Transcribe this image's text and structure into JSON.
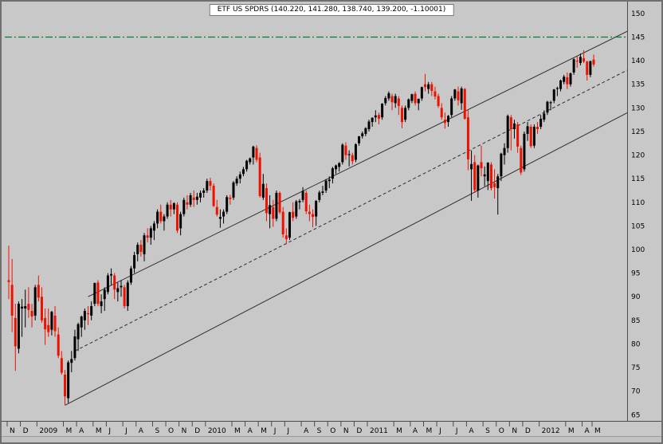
{
  "title": "ETF US SPDRS (140.220, 141.280, 138.740, 139.200, -1.10001)",
  "chart_data": {
    "type": "candlestick",
    "symbol": "ETF US SPDRS",
    "period": "weekly",
    "last_quote": {
      "open": 140.22,
      "high": 141.28,
      "low": 138.74,
      "close": 139.2,
      "change": -1.10001
    },
    "colors": {
      "background": "#c8c8c8",
      "frame": "#6f6f6f",
      "up": "#000000",
      "down": "#ee1100",
      "trendline": "#2e2e2e",
      "horizontal": "#0b7a3a",
      "axis_text": "#000000"
    },
    "y_axis": {
      "labels": [
        150,
        145,
        140,
        135,
        130,
        125,
        120,
        115,
        110,
        105,
        100,
        95,
        90,
        85,
        80,
        75,
        70,
        65
      ],
      "ylim": [
        63.7,
        151.5
      ]
    },
    "x_ticks": [
      {
        "label": "N",
        "bar": 0
      },
      {
        "label": "D",
        "bar": 4
      },
      {
        "label": "2009",
        "bar": 9
      },
      {
        "label": "M",
        "bar": 17
      },
      {
        "label": "A",
        "bar": 21
      },
      {
        "label": "M",
        "bar": 26
      },
      {
        "label": "J",
        "bar": 30
      },
      {
        "label": "J",
        "bar": 35
      },
      {
        "label": "A",
        "bar": 39
      },
      {
        "label": "S",
        "bar": 44
      },
      {
        "label": "O",
        "bar": 48
      },
      {
        "label": "N",
        "bar": 52
      },
      {
        "label": "D",
        "bar": 56
      },
      {
        "label": "2010",
        "bar": 60
      },
      {
        "label": "M",
        "bar": 68
      },
      {
        "label": "A",
        "bar": 72
      },
      {
        "label": "M",
        "bar": 76
      },
      {
        "label": "J",
        "bar": 80
      },
      {
        "label": "J",
        "bar": 84
      },
      {
        "label": "A",
        "bar": 89
      },
      {
        "label": "S",
        "bar": 93
      },
      {
        "label": "O",
        "bar": 97
      },
      {
        "label": "N",
        "bar": 101
      },
      {
        "label": "D",
        "bar": 105
      },
      {
        "label": "2011",
        "bar": 109
      },
      {
        "label": "M",
        "bar": 117
      },
      {
        "label": "A",
        "bar": 122
      },
      {
        "label": "M",
        "bar": 126
      },
      {
        "label": "J",
        "bar": 130
      },
      {
        "label": "J",
        "bar": 135
      },
      {
        "label": "A",
        "bar": 139
      },
      {
        "label": "S",
        "bar": 144
      },
      {
        "label": "O",
        "bar": 148
      },
      {
        "label": "N",
        "bar": 152
      },
      {
        "label": "D",
        "bar": 156
      },
      {
        "label": "2012",
        "bar": 161
      },
      {
        "label": "M",
        "bar": 169
      },
      {
        "label": "A",
        "bar": 174
      },
      {
        "label": "M",
        "bar": 177
      }
    ],
    "overlays": {
      "horizontal_line": {
        "price": 145,
        "style": "dash-dot",
        "color": "#0b7a3a"
      },
      "trendlines": [
        {
          "name": "channel-upper",
          "style": "solid",
          "from_bar": 24,
          "from_price": 90,
          "to_bar": 190,
          "to_price": 147.2
        },
        {
          "name": "channel-mid",
          "style": "dashed",
          "from_bar": 20,
          "from_price": 78.5,
          "to_bar": 190,
          "to_price": 139
        },
        {
          "name": "channel-lower",
          "style": "solid",
          "from_bar": 17,
          "from_price": 67,
          "to_bar": 190,
          "to_price": 130
        }
      ]
    },
    "bars": [
      [
        93.5,
        100.8,
        89.5,
        93.1
      ],
      [
        92.5,
        98.0,
        82.5,
        86.0
      ],
      [
        85.5,
        88.5,
        74.3,
        79.5
      ],
      [
        79.0,
        89.0,
        78.0,
        88.5
      ],
      [
        87.5,
        89.5,
        81.5,
        87.9
      ],
      [
        87.5,
        91.5,
        83.5,
        88.0
      ],
      [
        88.5,
        92.0,
        85.5,
        87.2
      ],
      [
        87.0,
        88.5,
        83.5,
        85.8
      ],
      [
        86.0,
        92.5,
        85.0,
        92.0
      ],
      [
        92.5,
        94.5,
        89.0,
        89.8
      ],
      [
        90.0,
        92.0,
        84.5,
        85.0
      ],
      [
        85.5,
        87.5,
        79.8,
        83.1
      ],
      [
        84.0,
        87.5,
        81.5,
        82.5
      ],
      [
        83.0,
        87.0,
        81.8,
        86.8
      ],
      [
        86.0,
        88.0,
        81.5,
        82.7
      ],
      [
        82.0,
        83.5,
        77.0,
        77.5
      ],
      [
        77.0,
        78.5,
        73.5,
        73.9
      ],
      [
        73.5,
        74.5,
        67.1,
        68.9
      ],
      [
        68.5,
        76.5,
        67.5,
        76.1
      ],
      [
        76.0,
        78.5,
        74.0,
        76.8
      ],
      [
        77.0,
        83.0,
        76.5,
        81.6
      ],
      [
        81.0,
        84.5,
        78.5,
        84.2
      ],
      [
        83.5,
        86.0,
        81.5,
        85.8
      ],
      [
        85.0,
        87.5,
        83.0,
        87.0
      ],
      [
        86.5,
        88.0,
        84.0,
        86.3
      ],
      [
        86.0,
        89.0,
        85.0,
        88.0
      ],
      [
        88.5,
        93.0,
        88.0,
        92.9
      ],
      [
        93.0,
        93.5,
        88.0,
        88.5
      ],
      [
        88.0,
        90.5,
        86.5,
        89.0
      ],
      [
        89.5,
        92.0,
        87.0,
        91.5
      ],
      [
        91.0,
        95.0,
        90.5,
        94.5
      ],
      [
        94.5,
        96.0,
        92.5,
        94.8
      ],
      [
        94.5,
        95.0,
        89.5,
        91.5
      ],
      [
        91.0,
        93.0,
        89.0,
        91.8
      ],
      [
        92.0,
        93.5,
        90.0,
        92.3
      ],
      [
        92.0,
        92.5,
        87.5,
        88.0
      ],
      [
        88.0,
        93.5,
        87.0,
        93.0
      ],
      [
        93.0,
        96.5,
        92.5,
        96.0
      ],
      [
        96.0,
        99.5,
        95.0,
        98.8
      ],
      [
        99.0,
        101.5,
        97.5,
        101.0
      ],
      [
        101.0,
        102.0,
        98.5,
        99.5
      ],
      [
        99.0,
        103.5,
        97.5,
        103.0
      ],
      [
        103.0,
        104.5,
        101.5,
        102.5
      ],
      [
        102.5,
        105.0,
        101.0,
        104.5
      ],
      [
        104.0,
        106.0,
        102.0,
        105.5
      ],
      [
        105.5,
        108.5,
        104.5,
        108.0
      ],
      [
        108.0,
        109.5,
        105.5,
        106.0
      ],
      [
        106.0,
        107.5,
        104.0,
        107.0
      ],
      [
        107.0,
        110.0,
        106.5,
        109.5
      ],
      [
        109.5,
        110.5,
        107.0,
        108.5
      ],
      [
        108.5,
        110.0,
        107.5,
        109.8
      ],
      [
        109.5,
        110.0,
        103.5,
        104.0
      ],
      [
        104.5,
        108.0,
        103.0,
        107.5
      ],
      [
        107.5,
        111.0,
        107.0,
        110.5
      ],
      [
        110.0,
        111.5,
        108.5,
        109.5
      ],
      [
        109.5,
        112.0,
        109.0,
        111.5
      ],
      [
        111.0,
        112.5,
        109.0,
        110.5
      ],
      [
        110.5,
        112.0,
        109.5,
        111.2
      ],
      [
        111.0,
        112.5,
        110.0,
        112.0
      ],
      [
        112.0,
        113.0,
        111.0,
        112.5
      ],
      [
        112.5,
        115.0,
        112.0,
        114.5
      ],
      [
        114.5,
        115.2,
        112.5,
        113.5
      ],
      [
        113.5,
        114.0,
        109.0,
        109.2
      ],
      [
        109.0,
        110.5,
        107.0,
        107.4
      ],
      [
        106.5,
        108.5,
        104.6,
        106.9
      ],
      [
        107.0,
        108.5,
        105.5,
        108.0
      ],
      [
        108.0,
        111.5,
        107.5,
        111.1
      ],
      [
        111.0,
        111.6,
        109.5,
        110.7
      ],
      [
        111.0,
        114.5,
        110.5,
        114.2
      ],
      [
        114.0,
        115.5,
        113.5,
        115.0
      ],
      [
        115.0,
        116.5,
        114.0,
        115.9
      ],
      [
        116.0,
        117.5,
        115.5,
        117.0
      ],
      [
        117.0,
        119.0,
        116.5,
        118.8
      ],
      [
        118.5,
        119.5,
        118.0,
        119.3
      ],
      [
        119.5,
        122.0,
        118.0,
        121.8
      ],
      [
        121.5,
        122.1,
        118.5,
        119.0
      ],
      [
        119.5,
        120.5,
        111.0,
        111.3
      ],
      [
        111.0,
        116.0,
        110.5,
        113.9
      ],
      [
        113.0,
        114.0,
        106.0,
        107.7
      ],
      [
        107.5,
        111.5,
        104.5,
        109.4
      ],
      [
        109.0,
        110.5,
        104.8,
        106.5
      ],
      [
        106.5,
        112.5,
        106.0,
        112.0
      ],
      [
        112.0,
        112.3,
        107.5,
        107.9
      ],
      [
        108.0,
        109.0,
        102.5,
        103.2
      ],
      [
        103.0,
        104.5,
        101.1,
        102.2
      ],
      [
        102.5,
        108.0,
        102.0,
        107.9
      ],
      [
        108.0,
        110.0,
        106.0,
        106.7
      ],
      [
        107.0,
        110.5,
        106.5,
        110.2
      ],
      [
        110.0,
        110.7,
        108.5,
        110.3
      ],
      [
        110.5,
        113.2,
        110.0,
        112.4
      ],
      [
        112.0,
        112.5,
        107.5,
        108.1
      ],
      [
        108.0,
        109.5,
        106.0,
        107.5
      ],
      [
        107.5,
        108.5,
        104.7,
        106.9
      ],
      [
        107.0,
        110.5,
        105.0,
        110.3
      ],
      [
        110.5,
        112.5,
        110.0,
        112.1
      ],
      [
        112.0,
        113.5,
        111.5,
        112.3
      ],
      [
        112.5,
        114.9,
        112.0,
        114.6
      ],
      [
        114.5,
        115.5,
        113.0,
        114.8
      ],
      [
        115.0,
        117.5,
        114.0,
        117.2
      ],
      [
        117.0,
        118.0,
        116.0,
        117.8
      ],
      [
        117.5,
        118.5,
        116.5,
        118.3
      ],
      [
        118.5,
        122.5,
        118.0,
        122.2
      ],
      [
        122.0,
        122.7,
        119.0,
        120.0
      ],
      [
        120.0,
        121.0,
        117.6,
        120.2
      ],
      [
        120.0,
        120.5,
        118.0,
        118.7
      ],
      [
        119.0,
        122.5,
        118.5,
        122.3
      ],
      [
        122.5,
        124.0,
        122.0,
        124.0
      ],
      [
        124.0,
        125.0,
        123.5,
        124.6
      ],
      [
        124.5,
        125.9,
        124.0,
        125.7
      ],
      [
        125.5,
        127.5,
        125.0,
        127.1
      ],
      [
        127.0,
        128.0,
        126.0,
        127.9
      ],
      [
        128.0,
        129.5,
        127.0,
        128.4
      ],
      [
        128.5,
        129.0,
        126.5,
        127.7
      ],
      [
        128.0,
        131.0,
        127.5,
        130.9
      ],
      [
        131.0,
        132.5,
        130.5,
        132.1
      ],
      [
        132.0,
        133.5,
        131.5,
        133.1
      ],
      [
        132.5,
        133.0,
        129.5,
        131.2
      ],
      [
        131.0,
        133.0,
        130.0,
        132.5
      ],
      [
        132.0,
        132.5,
        128.5,
        130.4
      ],
      [
        130.0,
        130.5,
        125.7,
        127.0
      ],
      [
        127.5,
        130.5,
        127.0,
        130.0
      ],
      [
        130.0,
        132.0,
        129.5,
        131.8
      ],
      [
        131.5,
        133.0,
        131.0,
        132.9
      ],
      [
        133.0,
        133.5,
        130.5,
        131.0
      ],
      [
        131.0,
        132.0,
        129.5,
        131.9
      ],
      [
        132.0,
        134.5,
        131.5,
        134.4
      ],
      [
        135.0,
        137.2,
        133.5,
        134.4
      ],
      [
        134.0,
        135.5,
        133.0,
        135.0
      ],
      [
        135.0,
        135.5,
        132.5,
        133.6
      ],
      [
        133.5,
        134.5,
        131.8,
        132.4
      ],
      [
        132.5,
        133.0,
        130.0,
        130.4
      ],
      [
        130.0,
        131.0,
        127.5,
        128.0
      ],
      [
        127.5,
        129.0,
        125.6,
        126.8
      ],
      [
        127.0,
        128.5,
        126.0,
        128.3
      ],
      [
        128.5,
        132.5,
        128.0,
        132.0
      ],
      [
        132.0,
        134.0,
        131.5,
        133.9
      ],
      [
        133.5,
        134.5,
        130.5,
        131.6
      ],
      [
        131.0,
        134.5,
        129.6,
        134.1
      ],
      [
        134.0,
        134.2,
        127.5,
        127.7
      ],
      [
        128.0,
        129.5,
        116.8,
        119.1
      ],
      [
        117.0,
        121.0,
        110.3,
        118.1
      ],
      [
        118.5,
        120.0,
        112.0,
        112.6
      ],
      [
        112.5,
        118.0,
        111.0,
        117.8
      ],
      [
        118.5,
        122.0,
        115.5,
        117.2
      ],
      [
        115.5,
        117.6,
        113.4,
        115.9
      ],
      [
        114.5,
        118.5,
        112.6,
        118.4
      ],
      [
        118.0,
        118.5,
        112.5,
        113.0
      ],
      [
        114.0,
        117.0,
        110.8,
        113.2
      ],
      [
        113.0,
        116.0,
        107.4,
        115.5
      ],
      [
        115.5,
        120.5,
        114.5,
        120.3
      ],
      [
        120.0,
        122.5,
        118.0,
        121.5
      ],
      [
        121.5,
        128.6,
        120.5,
        128.3
      ],
      [
        128.0,
        128.5,
        121.0,
        125.5
      ],
      [
        125.5,
        127.5,
        123.5,
        126.7
      ],
      [
        126.5,
        127.0,
        120.5,
        121.8
      ],
      [
        121.5,
        122.0,
        115.8,
        116.3
      ],
      [
        117.0,
        125.0,
        116.5,
        124.5
      ],
      [
        124.5,
        127.0,
        123.0,
        126.1
      ],
      [
        126.0,
        126.5,
        121.5,
        121.9
      ],
      [
        122.0,
        126.5,
        121.5,
        126.0
      ],
      [
        126.0,
        127.0,
        124.5,
        125.5
      ],
      [
        126.0,
        128.5,
        125.5,
        127.7
      ],
      [
        127.5,
        129.5,
        127.0,
        128.8
      ],
      [
        129.0,
        131.5,
        128.5,
        131.3
      ],
      [
        131.0,
        131.5,
        129.5,
        131.2
      ],
      [
        131.5,
        134.0,
        131.0,
        133.9
      ],
      [
        134.0,
        134.5,
        132.5,
        134.2
      ],
      [
        134.0,
        136.0,
        133.5,
        135.8
      ],
      [
        135.5,
        137.0,
        135.0,
        136.6
      ],
      [
        136.5,
        137.5,
        134.0,
        135.0
      ],
      [
        135.0,
        137.5,
        134.5,
        137.3
      ],
      [
        137.5,
        140.5,
        137.0,
        140.3
      ],
      [
        140.0,
        141.0,
        138.5,
        139.8
      ],
      [
        139.5,
        141.5,
        139.0,
        140.8
      ],
      [
        140.5,
        142.2,
        139.5,
        139.8
      ],
      [
        139.8,
        140.0,
        135.8,
        137.0
      ],
      [
        137.0,
        140.0,
        136.5,
        139.9
      ],
      [
        140.22,
        141.28,
        138.74,
        139.2
      ]
    ]
  }
}
